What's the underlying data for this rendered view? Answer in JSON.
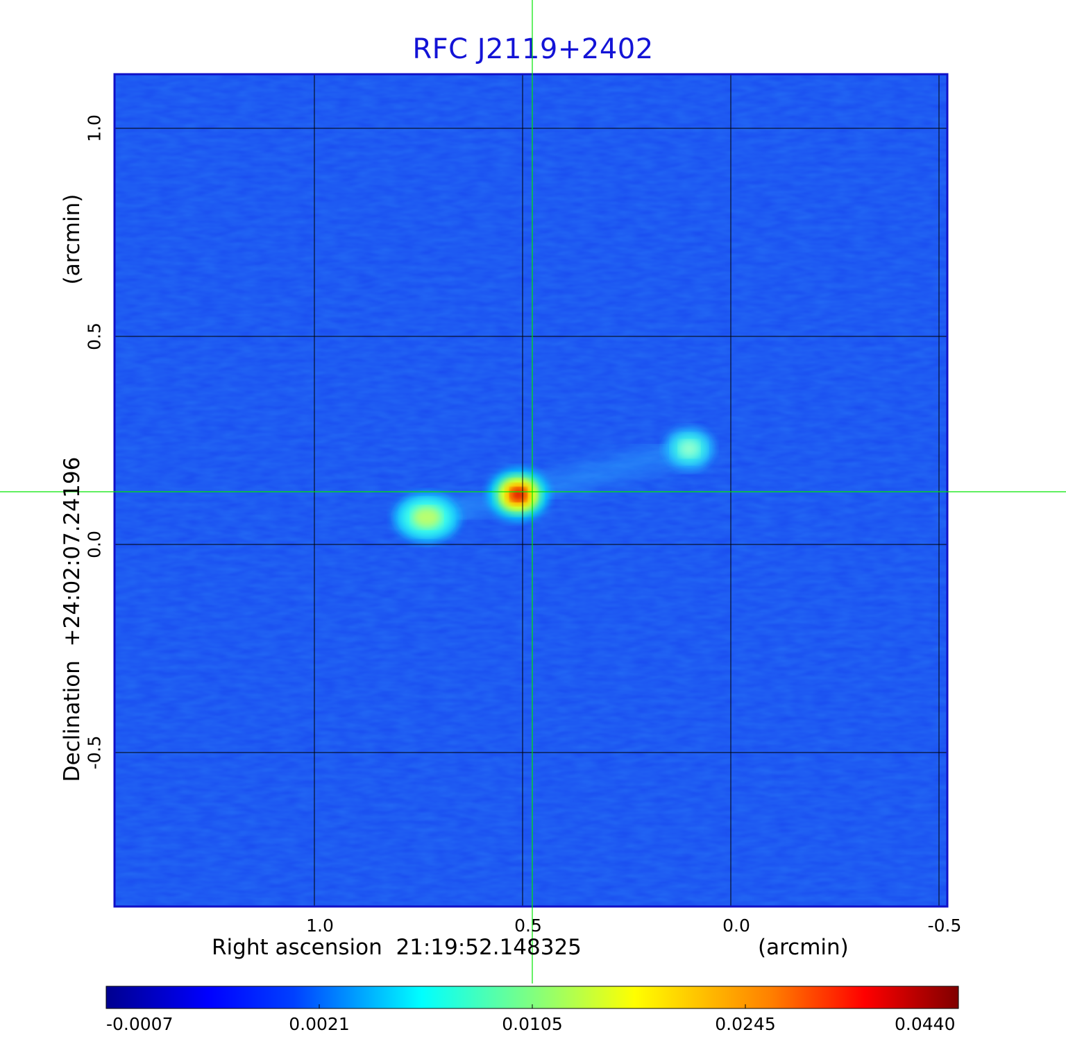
{
  "title": "RFC J2119+2402",
  "chart_data": {
    "type": "heatmap",
    "title": "RFC J2119+2402",
    "xlabel": "Right ascension  21:19:52.148325",
    "xunit": "(arcmin)",
    "ylabel": "Declination  +24:02:07.24196",
    "yunit": "(arcmin)",
    "x_ticks": [
      "1.0",
      "0.5",
      "0.0",
      "-0.5"
    ],
    "y_ticks": [
      "1.0",
      "0.5",
      "0.0",
      "-0.5"
    ],
    "x_range_arcmin": [
      1.48,
      -0.52
    ],
    "y_range_arcmin": [
      -0.87,
      1.13
    ],
    "grid": true,
    "colormap": "jet",
    "colorbar_ticks": [
      "-0.0007",
      "0.0021",
      "0.0105",
      "0.0245",
      "0.0440"
    ],
    "crosshair_color": "#00e600",
    "components": [
      {
        "x": 0.51,
        "y": 0.12,
        "peak": 0.044
      },
      {
        "x": 0.73,
        "y": 0.065,
        "peak": 0.012
      },
      {
        "x": 0.1,
        "y": 0.23,
        "peak": 0.0085
      }
    ]
  }
}
